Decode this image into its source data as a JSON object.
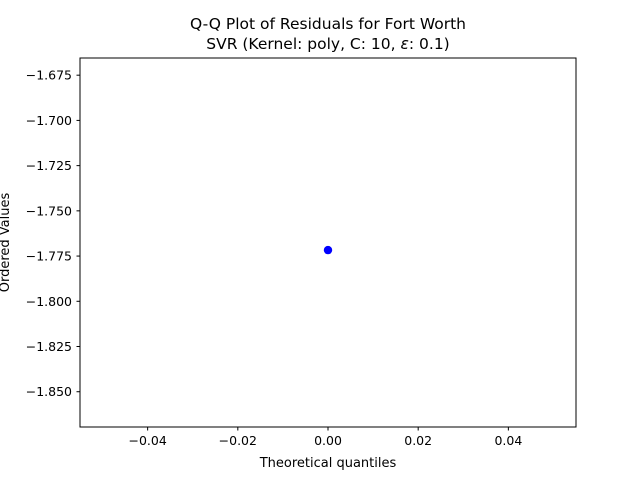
{
  "chart_data": {
    "type": "scatter",
    "title": "Q-Q Plot of Residuals for Fort Worth",
    "subtitle_prefix": "SVR (Kernel: poly, C: 10, ",
    "subtitle_symbol": "ε",
    "subtitle_suffix": ": 0.1)",
    "xlabel": "Theoretical quantiles",
    "ylabel": "Ordered Values",
    "xlim": [
      -0.055,
      0.055
    ],
    "ylim": [
      -1.8695,
      -1.6655
    ],
    "x_ticks": [
      -0.04,
      -0.02,
      0.0,
      0.02,
      0.04
    ],
    "x_tick_labels": [
      "−0.04",
      "−0.02",
      "0.00",
      "0.02",
      "0.04"
    ],
    "y_ticks": [
      -1.675,
      -1.7,
      -1.725,
      -1.75,
      -1.775,
      -1.8,
      -1.825,
      -1.85
    ],
    "y_tick_labels": [
      "−1.675",
      "−1.700",
      "−1.725",
      "−1.750",
      "−1.775",
      "−1.800",
      "−1.825",
      "−1.850"
    ],
    "grid": false,
    "series": [
      {
        "color": "#0000ff",
        "x": [
          0.0
        ],
        "y": [
          -1.7717
        ]
      }
    ]
  }
}
